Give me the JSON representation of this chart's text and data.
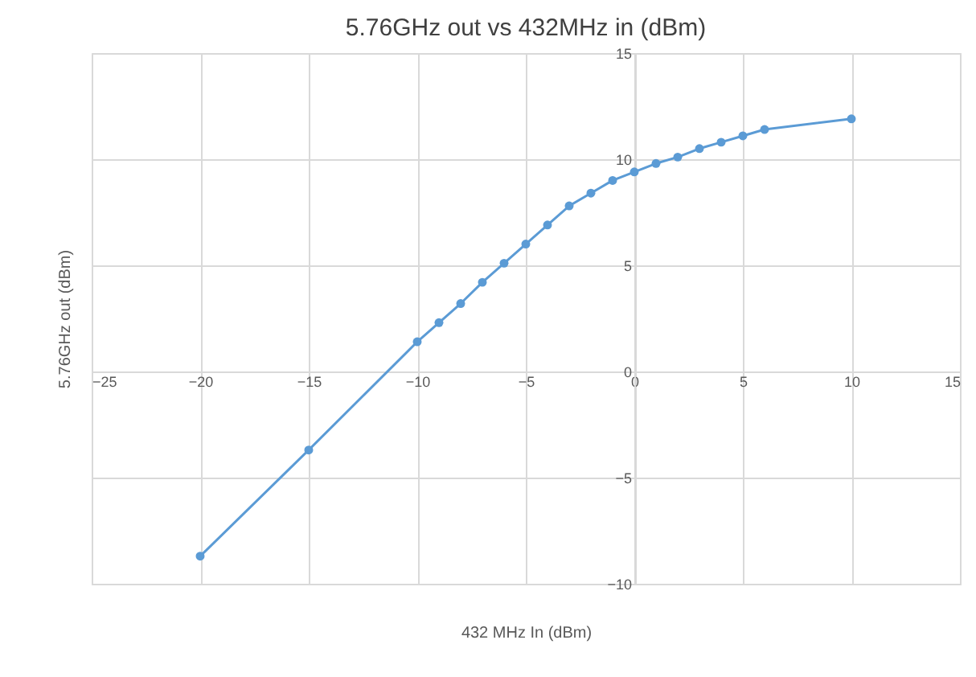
{
  "chart_data": {
    "type": "line",
    "title": "5.76GHz out vs 432MHz in (dBm)",
    "xlabel": "432 MHz In (dBm)",
    "ylabel": "5.76GHz out (dBm)",
    "series": [
      {
        "color": "#5b9bd5",
        "x": [
          -20,
          -15,
          -10,
          -9,
          -8,
          -7,
          -6,
          -5,
          -4,
          -3,
          -2,
          -1,
          0,
          1,
          2,
          3,
          4,
          5,
          6,
          10
        ],
        "values": [
          -8.7,
          -3.7,
          1.4,
          2.3,
          3.2,
          4.2,
          5.1,
          6.0,
          6.9,
          7.8,
          8.4,
          9.0,
          9.4,
          9.8,
          10.1,
          10.5,
          10.8,
          11.1,
          11.4,
          11.9
        ]
      }
    ],
    "xlim": [
      -25,
      15
    ],
    "ylim": [
      -10,
      15
    ],
    "xticks": [
      -25,
      -20,
      -15,
      -10,
      -5,
      0,
      5,
      10,
      15
    ],
    "yticks": [
      -10,
      -5,
      0,
      5,
      10,
      15
    ],
    "grid": true,
    "marker": "circle",
    "line_style": "solid"
  }
}
